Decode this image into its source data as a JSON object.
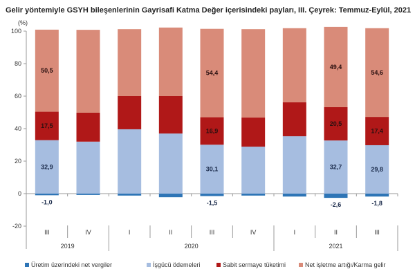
{
  "chart_data": {
    "type": "bar",
    "stacked": true,
    "title": "Gelir yöntemiyle GSYH bileşenlerinin Gayrisafi Katma Değer içerisindeki payları, III. Çeyrek: Temmuz-Eylül, 2021",
    "ylabel": "(%)",
    "ylim": [
      -20,
      100
    ],
    "yticks": [
      -20,
      0,
      20,
      40,
      60,
      80,
      100
    ],
    "quarters": [
      "III",
      "IV",
      "I",
      "II",
      "III",
      "IV",
      "I",
      "II",
      "III"
    ],
    "years": [
      {
        "label": "2019",
        "span": 2
      },
      {
        "label": "2020",
        "span": 4
      },
      {
        "label": "2021",
        "span": 3
      }
    ],
    "legend_position": "bottom",
    "series": [
      {
        "name": "Üretim üzerindeki net vergiler",
        "color": "#2e75b6",
        "values": [
          -1.0,
          -0.8,
          -1.2,
          -2.2,
          -1.5,
          -1.2,
          -1.8,
          -2.6,
          -1.8
        ],
        "labels": [
          "-1,0",
          "",
          "",
          "",
          "-1,5",
          "",
          "",
          "-2,6",
          "-1,8"
        ]
      },
      {
        "name": "İşgücü ödemeleri",
        "color": "#a6bde0",
        "values": [
          32.9,
          32.0,
          39.6,
          37.0,
          30.1,
          28.9,
          35.3,
          32.7,
          29.8
        ],
        "labels": [
          "32,9",
          "",
          "",
          "",
          "30,1",
          "",
          "",
          "32,7",
          "29,8"
        ]
      },
      {
        "name": "Sabit sermaye tüketimi",
        "color": "#b01818",
        "values": [
          17.5,
          17.8,
          20.4,
          23.0,
          16.9,
          17.9,
          20.9,
          20.5,
          17.4
        ],
        "labels": [
          "17,5",
          "",
          "",
          "",
          "16,9",
          "",
          "",
          "20,5",
          "17,4"
        ]
      },
      {
        "name": "Net işletme artığı/Karma gelir",
        "color": "#d98b79",
        "values": [
          50.5,
          51.0,
          41.2,
          42.2,
          54.4,
          54.4,
          45.6,
          49.4,
          54.6
        ],
        "labels": [
          "50,5",
          "",
          "",
          "",
          "54,4",
          "",
          "",
          "49,4",
          "54,6"
        ]
      }
    ]
  }
}
